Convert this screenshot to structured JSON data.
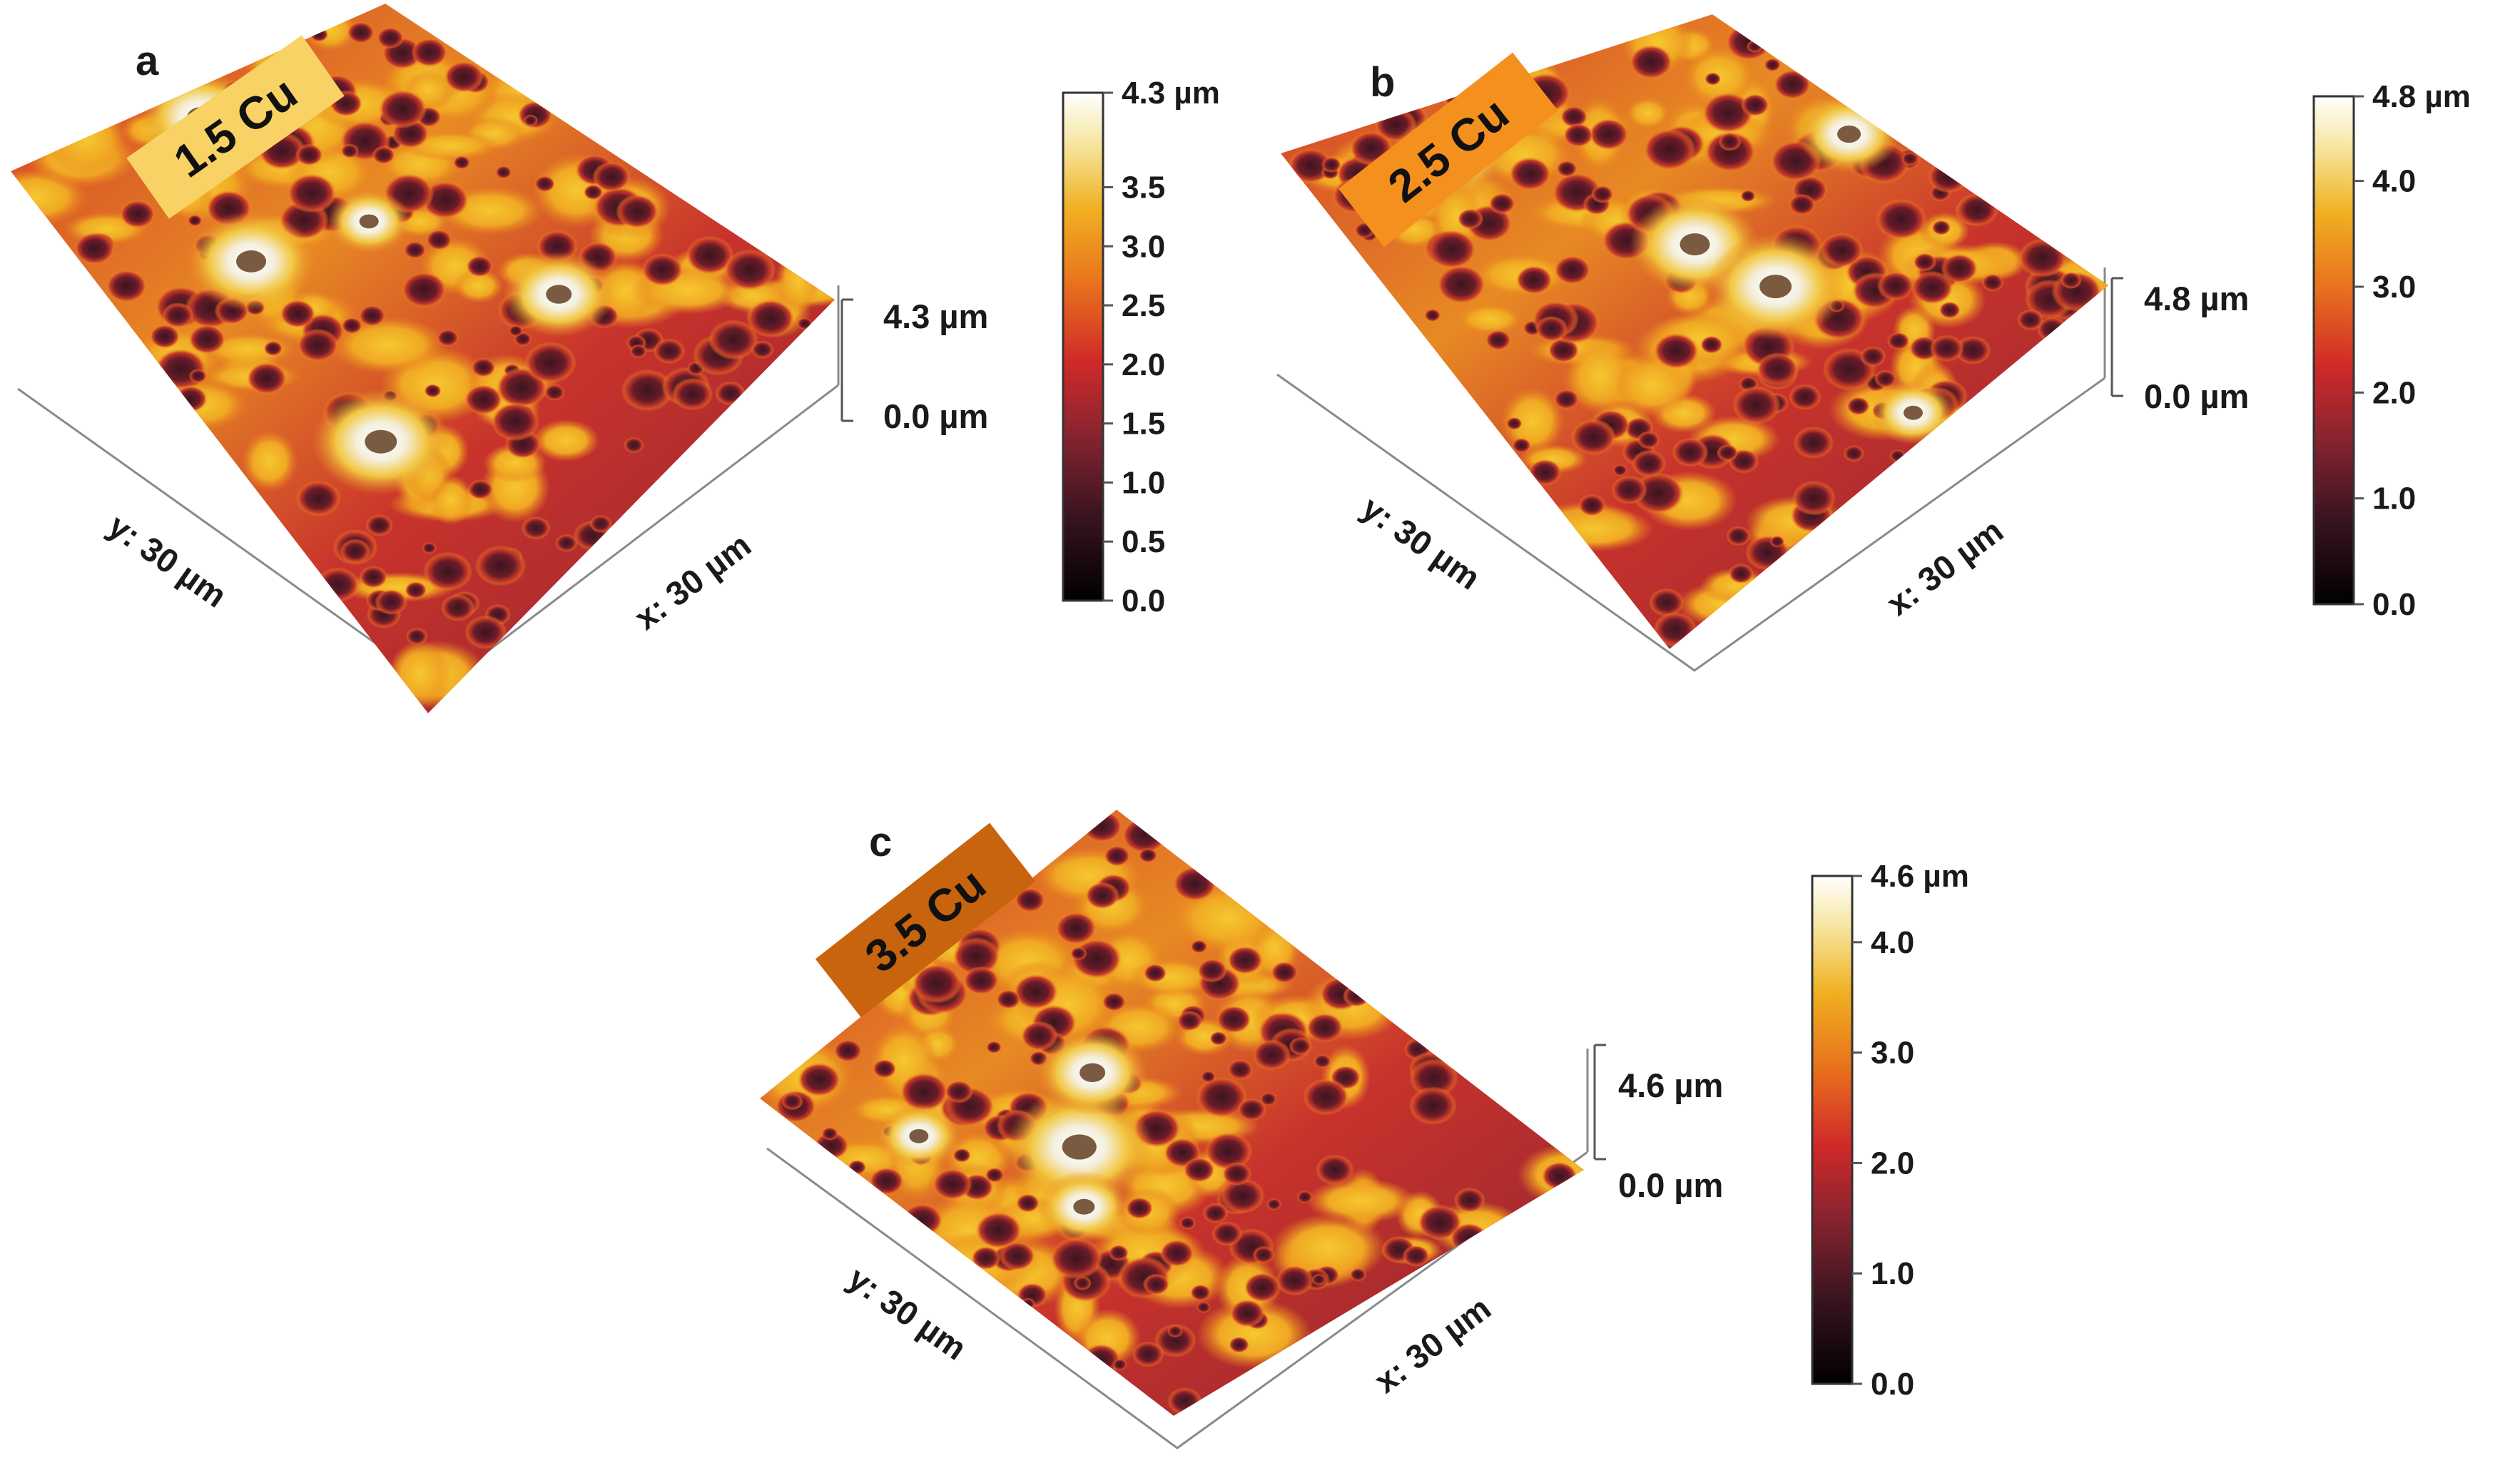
{
  "figure": {
    "panels": [
      {
        "letter": "a",
        "label": "1.5 Cu",
        "label_color": "#f8d264",
        "y_axis": "y: 30 µm",
        "x_axis": "x: 30 µm",
        "z_max": "4.3 µm",
        "z_min": "0.0 µm",
        "colorbar_ticks": [
          "4.3 µm",
          "3.5",
          "3.0",
          "2.5",
          "2.0",
          "1.5",
          "1.0",
          "0.5",
          "0.0"
        ],
        "colorbar_values": [
          4.3,
          3.5,
          3.0,
          2.5,
          2.0,
          1.5,
          1.0,
          0.5,
          0.0
        ],
        "z_range": [
          0.0,
          4.3
        ]
      },
      {
        "letter": "b",
        "label": "2.5 Cu",
        "label_color": "#f3901e",
        "y_axis": "y: 30 µm",
        "x_axis": "x: 30 µm",
        "z_max": "4.8 µm",
        "z_min": "0.0 µm",
        "colorbar_ticks": [
          "4.8 µm",
          "4.0",
          "3.0",
          "2.0",
          "1.0",
          "0.0"
        ],
        "colorbar_values": [
          4.8,
          4.0,
          3.0,
          2.0,
          1.0,
          0.0
        ],
        "z_range": [
          0.0,
          4.8
        ]
      },
      {
        "letter": "c",
        "label": "3.5 Cu",
        "label_color": "#c8640e",
        "y_axis": "y: 30 µm",
        "x_axis": "x: 30 µm",
        "z_max": "4.6 µm",
        "z_min": "0.0 µm",
        "colorbar_ticks": [
          "4.6 µm",
          "4.0",
          "3.0",
          "2.0",
          "1.0",
          "0.0"
        ],
        "colorbar_values": [
          4.6,
          4.0,
          3.0,
          2.0,
          1.0,
          0.0
        ],
        "z_range": [
          0.0,
          4.6
        ]
      }
    ],
    "colormap": [
      "#000000",
      "#5a1a26",
      "#c82a2a",
      "#e8701e",
      "#f0b020",
      "#f4e080",
      "#ffffff"
    ]
  }
}
